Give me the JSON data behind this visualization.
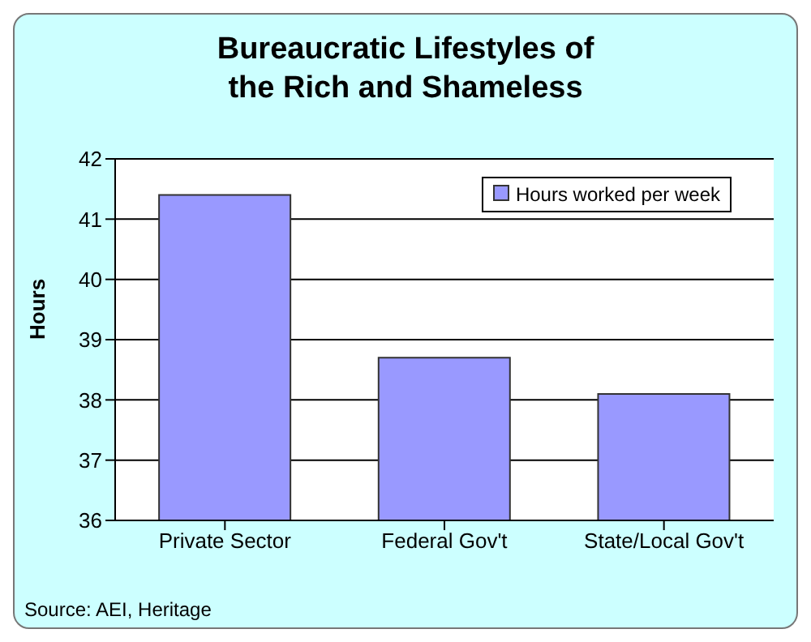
{
  "chart_data": {
    "type": "bar",
    "title": "Bureaucratic Lifestyles of the Rich and Shameless",
    "ylabel": "Hours",
    "categories": [
      "Private Sector",
      "Federal Gov't",
      "State/Local Gov't"
    ],
    "series": [
      {
        "name": "Hours worked per week",
        "color": "#9999ff",
        "values": [
          41.4,
          38.7,
          38.1
        ]
      }
    ],
    "ylim": [
      36,
      42
    ],
    "yticks": [
      36,
      37,
      38,
      39,
      40,
      41,
      42
    ],
    "grid": "y",
    "legend": "top right",
    "annotations": [
      "Source: AEI, Heritage"
    ]
  }
}
